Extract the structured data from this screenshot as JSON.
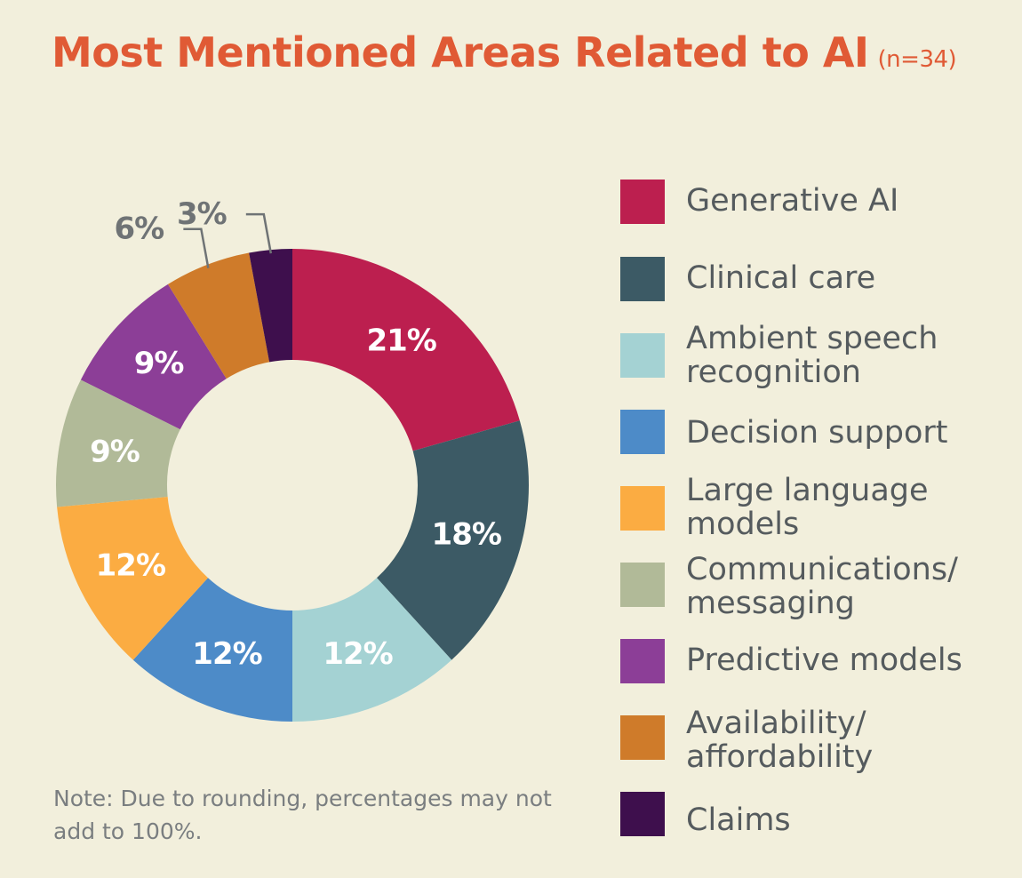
{
  "chart_data": {
    "type": "pie",
    "title": "Most Mentioned Areas Related to AI",
    "subtitle": "(n=34)",
    "categories": [
      "Generative AI",
      "Clinical care",
      "Ambient speech recognition",
      "Decision support",
      "Large language models",
      "Communications/ messaging",
      "Predictive models",
      "Availability/ affordability",
      "Claims"
    ],
    "legend_labels": [
      "Generative AI",
      "Clinical care",
      "Ambient speech\nrecognition",
      "Decision support",
      "Large language\nmodels",
      "Communications/\nmessaging",
      "Predictive models",
      "Availability/\naffordability",
      "Claims"
    ],
    "values": [
      21,
      18,
      12,
      12,
      12,
      9,
      9,
      6,
      3
    ],
    "value_labels": [
      "21%",
      "18%",
      "12%",
      "12%",
      "12%",
      "9%",
      "9%",
      "6%",
      "3%"
    ],
    "colors": [
      "#bc1f4f",
      "#3c5a65",
      "#a4d2d3",
      "#4d8bc8",
      "#fbac42",
      "#b1ba98",
      "#8c3e97",
      "#cf7b2a",
      "#3e0f4d"
    ],
    "label_colors": [
      "#ffffff",
      "#ffffff",
      "#ffffff",
      "#ffffff",
      "#ffffff",
      "#ffffff",
      "#ffffff",
      "#6f7375",
      "#6f7375"
    ],
    "donut": true,
    "legend_position": "right",
    "note": "Note: Due to rounding, percentages may not add to 100%."
  }
}
